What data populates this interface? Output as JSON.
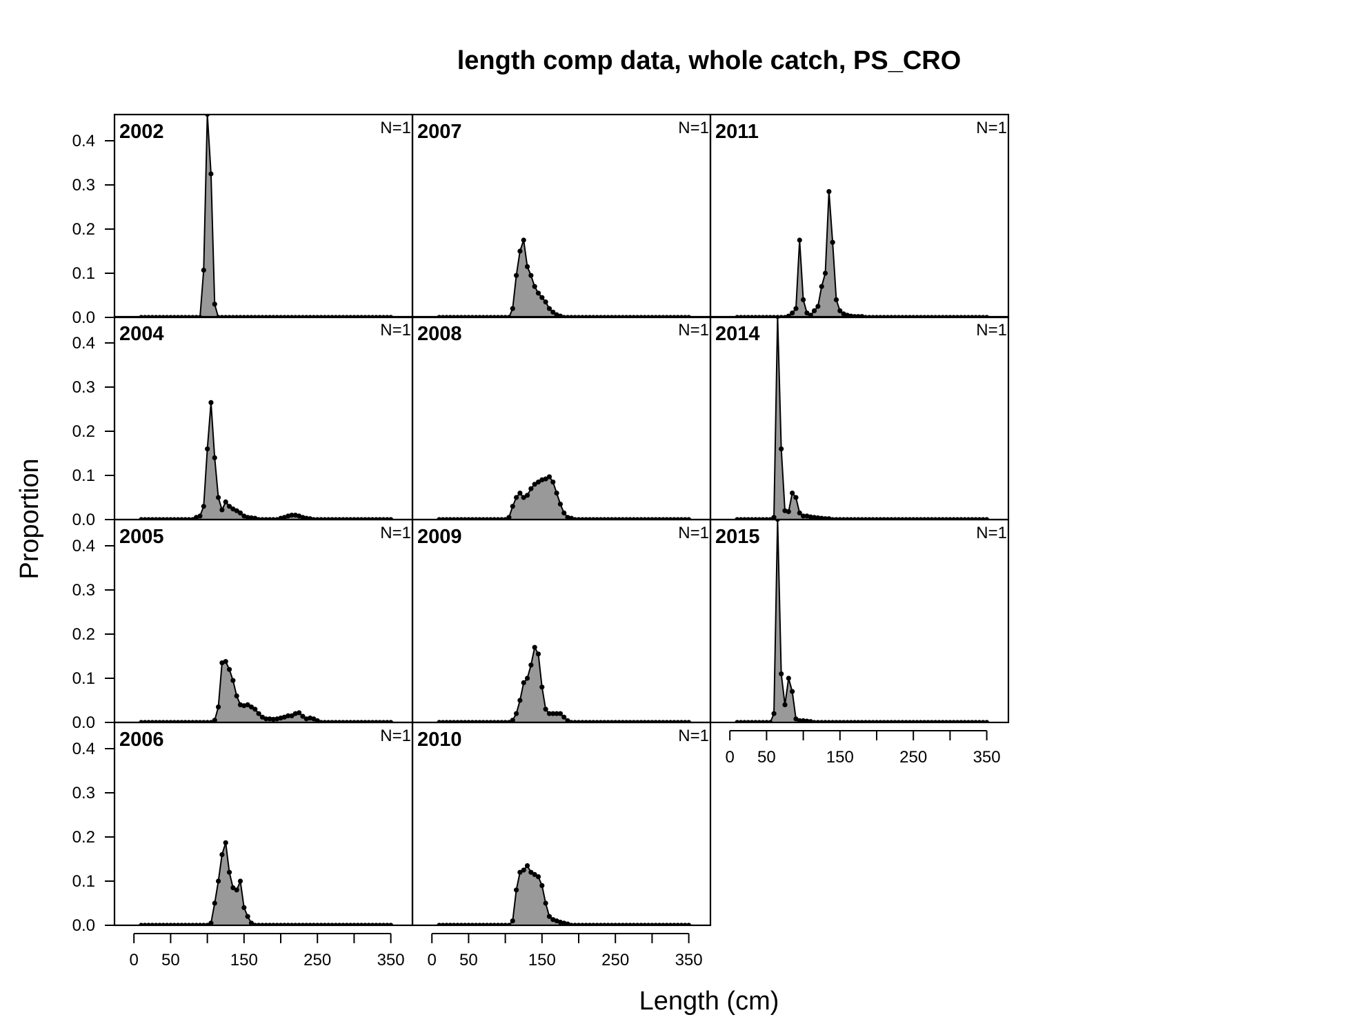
{
  "chart_data": {
    "type": "area",
    "title": "length comp data, whole catch, PS_CRO",
    "xlabel": "Length (cm)",
    "ylabel": "Proportion",
    "xlim": [
      0,
      350
    ],
    "ylim": [
      0,
      0.45
    ],
    "x_ticks": [
      0,
      50,
      150,
      250,
      350
    ],
    "x_tick_marks": [
      0,
      50,
      100,
      150,
      200,
      250,
      300,
      350
    ],
    "y_ticks": [
      "0.0",
      "0.1",
      "0.2",
      "0.3",
      "0.4"
    ],
    "fill_color": "#999999",
    "line_color": "#000000",
    "x_bins": [
      10,
      15,
      20,
      25,
      30,
      35,
      40,
      45,
      50,
      55,
      60,
      65,
      70,
      75,
      80,
      85,
      90,
      95,
      100,
      105,
      110,
      115,
      120,
      125,
      130,
      135,
      140,
      145,
      150,
      155,
      160,
      165,
      170,
      175,
      180,
      185,
      190,
      195,
      200,
      205,
      210,
      215,
      220,
      225,
      230,
      235,
      240,
      245,
      250,
      255,
      260,
      265,
      270,
      275,
      280,
      285,
      290,
      295,
      300,
      305,
      310,
      315,
      320,
      325,
      330,
      335,
      340,
      345,
      350
    ],
    "panels": [
      {
        "year": "2002",
        "n_label": "N=1",
        "peaks": [
          [
            95,
            0.107
          ],
          [
            100,
            0.46
          ],
          [
            105,
            0.325
          ],
          [
            110,
            0.03
          ]
        ]
      },
      {
        "year": "2004",
        "n_label": "N=1",
        "peaks": [
          [
            85,
            0.005
          ],
          [
            90,
            0.008
          ],
          [
            95,
            0.03
          ],
          [
            100,
            0.16
          ],
          [
            105,
            0.265
          ],
          [
            110,
            0.14
          ],
          [
            115,
            0.05
          ],
          [
            120,
            0.022
          ],
          [
            125,
            0.04
          ],
          [
            130,
            0.03
          ],
          [
            135,
            0.024
          ],
          [
            140,
            0.02
          ],
          [
            145,
            0.015
          ],
          [
            150,
            0.008
          ],
          [
            155,
            0.005
          ],
          [
            160,
            0.004
          ],
          [
            165,
            0.003
          ],
          [
            200,
            0.003
          ],
          [
            205,
            0.005
          ],
          [
            210,
            0.008
          ],
          [
            215,
            0.01
          ],
          [
            220,
            0.01
          ],
          [
            225,
            0.008
          ],
          [
            230,
            0.005
          ],
          [
            235,
            0.003
          ],
          [
            240,
            0.002
          ]
        ]
      },
      {
        "year": "2005",
        "n_label": "N=1",
        "peaks": [
          [
            110,
            0.005
          ],
          [
            115,
            0.035
          ],
          [
            120,
            0.135
          ],
          [
            125,
            0.138
          ],
          [
            130,
            0.12
          ],
          [
            135,
            0.095
          ],
          [
            140,
            0.06
          ],
          [
            145,
            0.04
          ],
          [
            150,
            0.038
          ],
          [
            155,
            0.04
          ],
          [
            160,
            0.035
          ],
          [
            165,
            0.03
          ],
          [
            170,
            0.02
          ],
          [
            175,
            0.012
          ],
          [
            180,
            0.008
          ],
          [
            185,
            0.008
          ],
          [
            190,
            0.007
          ],
          [
            195,
            0.008
          ],
          [
            200,
            0.01
          ],
          [
            205,
            0.012
          ],
          [
            210,
            0.015
          ],
          [
            215,
            0.015
          ],
          [
            220,
            0.02
          ],
          [
            225,
            0.022
          ],
          [
            230,
            0.014
          ],
          [
            235,
            0.008
          ],
          [
            240,
            0.01
          ],
          [
            245,
            0.008
          ],
          [
            250,
            0.004
          ]
        ]
      },
      {
        "year": "2006",
        "n_label": "N=1",
        "peaks": [
          [
            105,
            0.005
          ],
          [
            110,
            0.05
          ],
          [
            115,
            0.1
          ],
          [
            120,
            0.16
          ],
          [
            125,
            0.187
          ],
          [
            130,
            0.12
          ],
          [
            135,
            0.085
          ],
          [
            140,
            0.08
          ],
          [
            145,
            0.1
          ],
          [
            150,
            0.04
          ],
          [
            155,
            0.02
          ],
          [
            160,
            0.005
          ]
        ]
      },
      {
        "year": "2007",
        "n_label": "N=1",
        "peaks": [
          [
            110,
            0.02
          ],
          [
            115,
            0.095
          ],
          [
            120,
            0.15
          ],
          [
            125,
            0.175
          ],
          [
            130,
            0.115
          ],
          [
            135,
            0.095
          ],
          [
            140,
            0.07
          ],
          [
            145,
            0.055
          ],
          [
            150,
            0.045
          ],
          [
            155,
            0.035
          ],
          [
            160,
            0.02
          ],
          [
            165,
            0.012
          ],
          [
            170,
            0.006
          ],
          [
            175,
            0.003
          ]
        ]
      },
      {
        "year": "2008",
        "n_label": "N=1",
        "peaks": [
          [
            105,
            0.005
          ],
          [
            110,
            0.03
          ],
          [
            115,
            0.05
          ],
          [
            120,
            0.06
          ],
          [
            125,
            0.05
          ],
          [
            130,
            0.055
          ],
          [
            135,
            0.07
          ],
          [
            140,
            0.08
          ],
          [
            145,
            0.085
          ],
          [
            150,
            0.09
          ],
          [
            155,
            0.092
          ],
          [
            160,
            0.097
          ],
          [
            165,
            0.085
          ],
          [
            170,
            0.06
          ],
          [
            175,
            0.035
          ],
          [
            180,
            0.015
          ],
          [
            185,
            0.005
          ],
          [
            190,
            0.003
          ]
        ]
      },
      {
        "year": "2009",
        "n_label": "N=1",
        "peaks": [
          [
            110,
            0.005
          ],
          [
            115,
            0.02
          ],
          [
            120,
            0.05
          ],
          [
            125,
            0.09
          ],
          [
            130,
            0.1
          ],
          [
            135,
            0.13
          ],
          [
            140,
            0.17
          ],
          [
            145,
            0.155
          ],
          [
            150,
            0.08
          ],
          [
            155,
            0.03
          ],
          [
            160,
            0.02
          ],
          [
            165,
            0.02
          ],
          [
            170,
            0.02
          ],
          [
            175,
            0.02
          ],
          [
            180,
            0.012
          ],
          [
            185,
            0.004
          ]
        ]
      },
      {
        "year": "2010",
        "n_label": "N=1",
        "peaks": [
          [
            110,
            0.01
          ],
          [
            115,
            0.08
          ],
          [
            120,
            0.12
          ],
          [
            125,
            0.125
          ],
          [
            130,
            0.135
          ],
          [
            135,
            0.12
          ],
          [
            140,
            0.115
          ],
          [
            145,
            0.11
          ],
          [
            150,
            0.09
          ],
          [
            155,
            0.05
          ],
          [
            160,
            0.02
          ],
          [
            165,
            0.013
          ],
          [
            170,
            0.01
          ],
          [
            175,
            0.007
          ],
          [
            180,
            0.005
          ],
          [
            185,
            0.003
          ]
        ]
      },
      {
        "year": "2011",
        "n_label": "N=1",
        "peaks": [
          [
            80,
            0.003
          ],
          [
            85,
            0.01
          ],
          [
            90,
            0.02
          ],
          [
            95,
            0.175
          ],
          [
            100,
            0.04
          ],
          [
            105,
            0.01
          ],
          [
            110,
            0.005
          ],
          [
            115,
            0.015
          ],
          [
            120,
            0.025
          ],
          [
            125,
            0.07
          ],
          [
            130,
            0.1
          ],
          [
            135,
            0.285
          ],
          [
            140,
            0.17
          ],
          [
            145,
            0.04
          ],
          [
            150,
            0.015
          ],
          [
            155,
            0.008
          ],
          [
            160,
            0.005
          ],
          [
            165,
            0.003
          ],
          [
            170,
            0.002
          ],
          [
            175,
            0.002
          ],
          [
            180,
            0.002
          ]
        ]
      },
      {
        "year": "2014",
        "n_label": "N=1",
        "peaks": [
          [
            60,
            0.005
          ],
          [
            65,
            0.46
          ],
          [
            70,
            0.16
          ],
          [
            75,
            0.02
          ],
          [
            80,
            0.018
          ],
          [
            85,
            0.06
          ],
          [
            90,
            0.05
          ],
          [
            95,
            0.015
          ],
          [
            100,
            0.008
          ],
          [
            105,
            0.008
          ],
          [
            110,
            0.006
          ],
          [
            115,
            0.005
          ],
          [
            120,
            0.004
          ],
          [
            125,
            0.003
          ],
          [
            130,
            0.002
          ],
          [
            135,
            0.002
          ]
        ]
      },
      {
        "year": "2015",
        "n_label": "N=1",
        "peaks": [
          [
            60,
            0.02
          ],
          [
            65,
            0.46
          ],
          [
            70,
            0.11
          ],
          [
            75,
            0.04
          ],
          [
            80,
            0.1
          ],
          [
            85,
            0.07
          ],
          [
            90,
            0.008
          ],
          [
            95,
            0.004
          ],
          [
            100,
            0.004
          ],
          [
            105,
            0.003
          ],
          [
            110,
            0.002
          ]
        ]
      }
    ]
  }
}
